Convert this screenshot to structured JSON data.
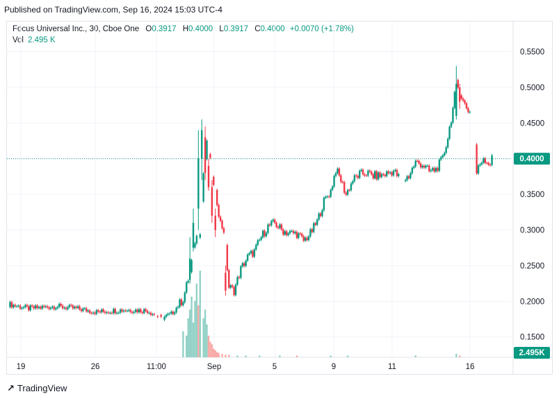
{
  "header": {
    "published": "Published on TradingView.com, Sep 16, 2024 15:03 UTC-4"
  },
  "legend": {
    "symbol": "Focus Universal Inc., 30, Cboe One",
    "o_label": "O",
    "o_value": "0.3917",
    "h_label": "H",
    "h_value": "0.4000",
    "l_label": "L",
    "l_value": "0.3917",
    "c_label": "C",
    "c_value": "0.4000",
    "change": "+0.0070 (+1.78%)",
    "vol_label": "Vol",
    "vol_value": "2.495 K"
  },
  "footer": {
    "brand": "TradingView",
    "logo": "tradingview-logo-icon"
  },
  "colors": {
    "up": "#089981",
    "down": "#f23645",
    "up_vol": "#92d1c6",
    "down_vol": "#f7a9a7",
    "grid": "#f0f3fa",
    "price_line": "#089981"
  },
  "chart_data": {
    "type": "candlestick",
    "y_ticks": [
      "0.5500",
      "0.5000",
      "0.4500",
      "0.4000",
      "0.3500",
      "0.3000",
      "0.2500",
      "0.2000",
      "0.1500"
    ],
    "x_ticks": [
      "19",
      "26",
      "11:00",
      "Sep",
      "5",
      "9",
      "11",
      "16"
    ],
    "ylim": [
      0.14,
      0.57
    ],
    "last_price_label": "0.4000",
    "volume_label": "2.495K",
    "anchors": [
      [
        0,
        0.196
      ],
      [
        12,
        0.19
      ],
      [
        28,
        0.193
      ],
      [
        40,
        0.19
      ],
      [
        52,
        0.185
      ],
      [
        68,
        0.188
      ],
      [
        82,
        0.187
      ],
      [
        90,
        0.176
      ],
      [
        96,
        0.182
      ],
      [
        103,
        0.203
      ],
      [
        107,
        0.24
      ],
      [
        110,
        0.285
      ],
      [
        113,
        0.3
      ],
      [
        115,
        0.38
      ],
      [
        117,
        0.42
      ],
      [
        119,
        0.395
      ],
      [
        121,
        0.36
      ],
      [
        123,
        0.34
      ],
      [
        125,
        0.31
      ],
      [
        127,
        0.3
      ],
      [
        130,
        0.22
      ],
      [
        133,
        0.215
      ],
      [
        137,
        0.245
      ],
      [
        141,
        0.262
      ],
      [
        145,
        0.27
      ],
      [
        149,
        0.29
      ],
      [
        153,
        0.305
      ],
      [
        157,
        0.31
      ],
      [
        161,
        0.3
      ],
      [
        165,
        0.296
      ],
      [
        170,
        0.295
      ],
      [
        174,
        0.285
      ],
      [
        178,
        0.295
      ],
      [
        182,
        0.312
      ],
      [
        186,
        0.34
      ],
      [
        190,
        0.355
      ],
      [
        193,
        0.385
      ],
      [
        196,
        0.37
      ],
      [
        199,
        0.35
      ],
      [
        203,
        0.37
      ],
      [
        207,
        0.378
      ],
      [
        211,
        0.38
      ],
      [
        215,
        0.376
      ],
      [
        219,
        0.376
      ],
      [
        223,
        0.379
      ],
      [
        227,
        0.383
      ],
      [
        232,
        0.368
      ],
      [
        236,
        0.376
      ],
      [
        240,
        0.395
      ],
      [
        244,
        0.392
      ],
      [
        248,
        0.382
      ],
      [
        252,
        0.385
      ],
      [
        256,
        0.4
      ],
      [
        259,
        0.43
      ],
      [
        262,
        0.47
      ],
      [
        264,
        0.505
      ],
      [
        266,
        0.495
      ],
      [
        268,
        0.48
      ],
      [
        270,
        0.472
      ],
      [
        272,
        0.465
      ],
      [
        274,
        0.46
      ],
      [
        276,
        0.38
      ],
      [
        278,
        0.393
      ],
      [
        280,
        0.402
      ],
      [
        282,
        0.396
      ],
      [
        284,
        0.393
      ],
      [
        285,
        0.4
      ]
    ],
    "big_candles": [
      [
        107,
        0.23,
        0.26,
        0.225,
        0.29,
        1
      ],
      [
        109,
        0.275,
        0.31,
        0.27,
        0.33,
        0
      ],
      [
        112,
        0.33,
        0.4,
        0.3,
        0.44,
        0
      ],
      [
        114,
        0.4,
        0.44,
        0.37,
        0.455,
        1
      ],
      [
        116,
        0.43,
        0.38,
        0.37,
        0.445,
        0
      ],
      [
        118,
        0.39,
        0.36,
        0.355,
        0.4,
        0
      ],
      [
        120,
        0.36,
        0.32,
        0.31,
        0.37,
        0
      ],
      [
        122,
        0.32,
        0.3,
        0.29,
        0.33,
        0
      ],
      [
        128,
        0.24,
        0.215,
        0.208,
        0.25,
        0
      ],
      [
        264,
        0.46,
        0.505,
        0.455,
        0.53,
        1
      ],
      [
        266,
        0.5,
        0.48,
        0.47,
        0.505,
        0
      ]
    ],
    "volumes": [
      [
        103,
        0.3
      ],
      [
        105,
        0.25
      ],
      [
        106,
        0.45
      ],
      [
        107,
        0.55
      ],
      [
        108,
        0.7
      ],
      [
        109,
        0.4
      ],
      [
        110,
        0.65
      ],
      [
        111,
        0.85
      ],
      [
        112,
        0.6
      ],
      [
        113,
        1.0
      ],
      [
        115,
        0.45
      ],
      [
        116,
        0.55
      ],
      [
        117,
        0.38
      ],
      [
        118,
        0.25
      ],
      [
        119,
        0.18
      ],
      [
        120,
        0.15
      ],
      [
        121,
        0.1
      ],
      [
        122,
        0.08
      ],
      [
        123,
        0.06
      ],
      [
        124,
        0.05
      ],
      [
        126,
        0.04
      ],
      [
        128,
        0.03
      ],
      [
        130,
        0.03
      ],
      [
        135,
        0.02
      ],
      [
        140,
        0.02
      ],
      [
        148,
        0.02
      ],
      [
        160,
        0.02
      ],
      [
        170,
        0.02
      ],
      [
        190,
        0.02
      ],
      [
        200,
        0.02
      ],
      [
        240,
        0.02
      ],
      [
        264,
        0.04
      ],
      [
        266,
        0.02
      ]
    ]
  }
}
